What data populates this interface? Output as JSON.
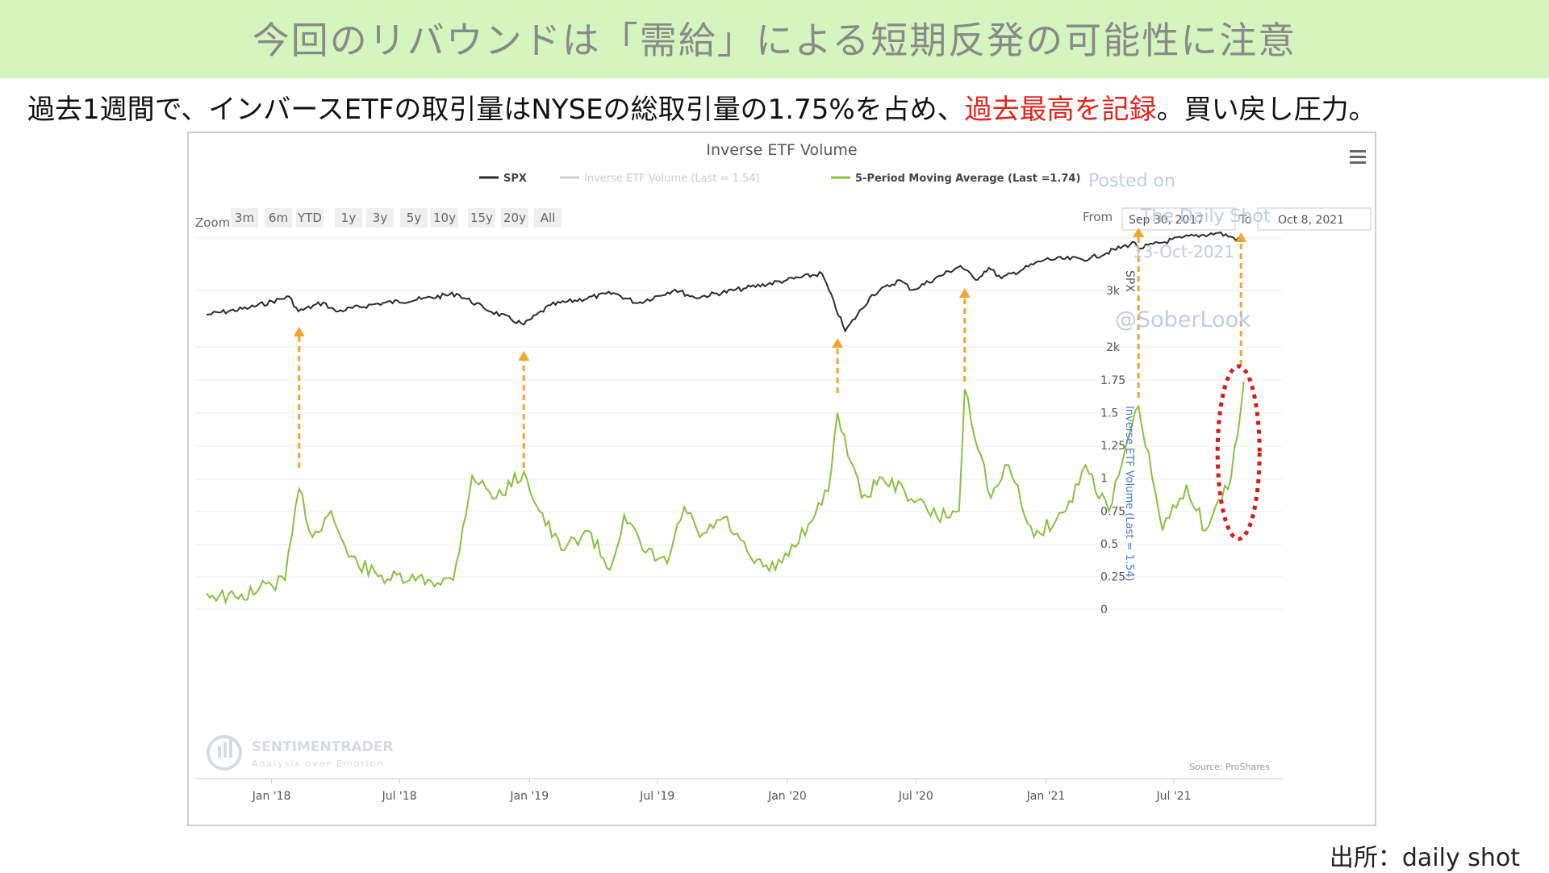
{
  "slide": {
    "title": "今回のリバウンドは「需給」による短期反発の可能性に注意",
    "subtitle_before": "過去1週間で、インバースETFの取引量はNYSEの総取引量の1.75%を占め、",
    "subtitle_highlight": "過去最高を記録",
    "subtitle_after": "。買い戻し圧力。",
    "source": "出所：daily shot",
    "highlight_color": "#e0261a"
  },
  "chart_ui": {
    "menu_icon": "hamburger-menu-icon",
    "zoom_label": "Zoom",
    "zoom_buttons": [
      "3m",
      "6m",
      "YTD",
      "1y",
      "3y",
      "5y",
      "10y",
      "15y",
      "20y",
      "All"
    ],
    "from_label": "From",
    "from_value": "Sep 30, 2017",
    "to_label": "To",
    "to_value": "Oct 8, 2021",
    "watermark_lines": [
      "Posted on",
      "The Daily Shot",
      "13-Oct-2021",
      "@SoberLook"
    ],
    "brand_name": "SENTIMENTRADER",
    "brand_tagline": "Analysis over Emotion",
    "source_credit": "Source: ProShares"
  },
  "chart_data": {
    "type": "line",
    "title": "Inverse ETF Volume",
    "legend_position": "top",
    "x_ticks": [
      "Jan '18",
      "Jul '18",
      "Jan '19",
      "Jul '19",
      "Jan '20",
      "Jul '20",
      "Jan '21",
      "Jul '21"
    ],
    "y_right_upper": {
      "label": "SPX",
      "ticks": [
        "3k",
        "2k"
      ],
      "scale": "log"
    },
    "y_right_lower": {
      "label": "Inverse ETF Volume (Last = 1.54)",
      "ticks": [
        "1.75",
        "1.5",
        "1.25",
        "1",
        "0.75",
        "0.5",
        "0.25",
        "0"
      ],
      "ylim": [
        0,
        1.75
      ]
    },
    "grid": true,
    "series": [
      {
        "name": "SPX",
        "color": "#2b2b2b",
        "points": [
          [
            "2017-10-01",
            2520
          ],
          [
            "2017-12-01",
            2650
          ],
          [
            "2018-01-26",
            2870
          ],
          [
            "2018-02-08",
            2580
          ],
          [
            "2018-03-15",
            2750
          ],
          [
            "2018-04-02",
            2580
          ],
          [
            "2018-06-01",
            2730
          ],
          [
            "2018-08-01",
            2820
          ],
          [
            "2018-09-20",
            2930
          ],
          [
            "2018-10-29",
            2640
          ],
          [
            "2018-12-24",
            2350
          ],
          [
            "2019-01-31",
            2700
          ],
          [
            "2019-04-30",
            2945
          ],
          [
            "2019-06-03",
            2740
          ],
          [
            "2019-07-26",
            3020
          ],
          [
            "2019-08-23",
            2850
          ],
          [
            "2019-10-31",
            3040
          ],
          [
            "2019-12-31",
            3230
          ],
          [
            "2020-02-19",
            3390
          ],
          [
            "2020-03-23",
            2240
          ],
          [
            "2020-04-30",
            2910
          ],
          [
            "2020-06-08",
            3230
          ],
          [
            "2020-06-26",
            3010
          ],
          [
            "2020-09-02",
            3580
          ],
          [
            "2020-09-23",
            3240
          ],
          [
            "2020-10-12",
            3530
          ],
          [
            "2020-10-30",
            3270
          ],
          [
            "2020-12-31",
            3750
          ],
          [
            "2021-03-04",
            3770
          ],
          [
            "2021-05-07",
            4230
          ],
          [
            "2021-05-12",
            4060
          ],
          [
            "2021-07-12",
            4380
          ],
          [
            "2021-09-02",
            4537
          ],
          [
            "2021-10-04",
            4300
          ],
          [
            "2021-10-08",
            4390
          ]
        ]
      },
      {
        "name": "Inverse ETF Volume (Last = 1.54)",
        "color": "#cfcfcf",
        "points": []
      },
      {
        "name": "5-Period Moving Average (Last =1.74)",
        "color": "#8cbf3f",
        "points": [
          [
            "2017-10-01",
            0.12
          ],
          [
            "2017-11-15",
            0.08
          ],
          [
            "2017-12-15",
            0.16
          ],
          [
            "2018-01-20",
            0.22
          ],
          [
            "2018-02-09",
            0.92
          ],
          [
            "2018-02-28",
            0.55
          ],
          [
            "2018-03-26",
            0.75
          ],
          [
            "2018-04-20",
            0.4
          ],
          [
            "2018-06-01",
            0.25
          ],
          [
            "2018-07-15",
            0.22
          ],
          [
            "2018-09-15",
            0.22
          ],
          [
            "2018-10-12",
            1.02
          ],
          [
            "2018-11-15",
            0.85
          ],
          [
            "2018-12-24",
            1.05
          ],
          [
            "2019-01-15",
            0.75
          ],
          [
            "2019-02-15",
            0.45
          ],
          [
            "2019-03-25",
            0.6
          ],
          [
            "2019-04-25",
            0.3
          ],
          [
            "2019-05-15",
            0.72
          ],
          [
            "2019-06-10",
            0.45
          ],
          [
            "2019-07-15",
            0.35
          ],
          [
            "2019-08-08",
            0.78
          ],
          [
            "2019-08-30",
            0.55
          ],
          [
            "2019-10-03",
            0.7
          ],
          [
            "2019-11-15",
            0.35
          ],
          [
            "2019-12-15",
            0.3
          ],
          [
            "2020-01-31",
            0.65
          ],
          [
            "2020-02-28",
            0.9
          ],
          [
            "2020-03-12",
            1.5
          ],
          [
            "2020-04-15",
            0.85
          ],
          [
            "2020-05-15",
            1.0
          ],
          [
            "2020-06-15",
            0.9
          ],
          [
            "2020-07-31",
            0.7
          ],
          [
            "2020-08-31",
            0.75
          ],
          [
            "2020-09-08",
            1.68
          ],
          [
            "2020-10-15",
            0.85
          ],
          [
            "2020-11-09",
            1.1
          ],
          [
            "2020-12-15",
            0.55
          ],
          [
            "2021-01-29",
            0.75
          ],
          [
            "2021-02-26",
            1.1
          ],
          [
            "2021-03-31",
            0.75
          ],
          [
            "2021-05-12",
            1.55
          ],
          [
            "2021-06-15",
            0.6
          ],
          [
            "2021-07-19",
            0.95
          ],
          [
            "2021-08-15",
            0.6
          ],
          [
            "2021-09-20",
            1.0
          ],
          [
            "2021-10-08",
            1.74
          ]
        ]
      }
    ],
    "annotations": {
      "arrow_dates": [
        "2018-02-09",
        "2018-12-24",
        "2020-03-12",
        "2020-09-08",
        "2021-05-12",
        "2021-10-04"
      ],
      "arrow_color": "#f2a52e",
      "highlight_ellipse_color": "#d21b1b"
    }
  }
}
